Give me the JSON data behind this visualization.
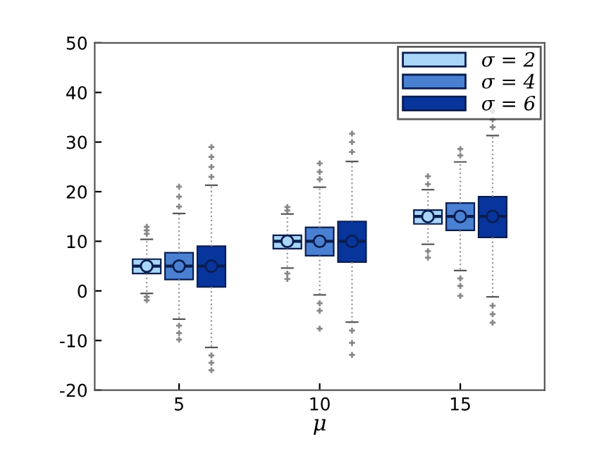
{
  "chart_data": {
    "type": "box",
    "xlabel": "μ",
    "categories": [
      "5",
      "10",
      "15"
    ],
    "ylim": [
      -20,
      50
    ],
    "yticks": [
      -20,
      -10,
      0,
      10,
      20,
      30,
      40,
      50
    ],
    "grid": false,
    "legend": "top right",
    "series": [
      {
        "name": "σ = 2",
        "color": "#a8d5f8",
        "boxes": [
          {
            "low": -0.5,
            "q1": 3.5,
            "median": 5,
            "q3": 6.4,
            "high": 10.4,
            "mean": 5,
            "outliers": [
              11.5,
              12.2,
              12.9,
              -1.2,
              -1.9
            ]
          },
          {
            "low": 4.6,
            "q1": 8.5,
            "median": 10,
            "q3": 11.2,
            "high": 15.5,
            "mean": 10,
            "outliers": [
              16.2,
              16.9,
              3.5,
              2.4
            ]
          },
          {
            "low": 9.4,
            "q1": 13.5,
            "median": 15,
            "q3": 16.3,
            "high": 20.4,
            "mean": 15,
            "outliers": [
              21.5,
              23.1,
              8.0,
              6.7
            ]
          }
        ]
      },
      {
        "name": "σ = 4",
        "color": "#4a80d2",
        "boxes": [
          {
            "low": -5.7,
            "q1": 2.3,
            "median": 5,
            "q3": 7.7,
            "high": 15.6,
            "mean": 5,
            "outliers": [
              17,
              19,
              21,
              -7,
              -8.5,
              -9.8
            ]
          },
          {
            "low": -0.8,
            "q1": 7.1,
            "median": 10,
            "q3": 12.8,
            "high": 20.9,
            "mean": 10,
            "outliers": [
              22.5,
              24,
              25.7,
              -2.5,
              -4,
              -7.6
            ]
          },
          {
            "low": 4.1,
            "q1": 12.2,
            "median": 15,
            "q3": 17.7,
            "high": 26,
            "mean": 15,
            "outliers": [
              27.3,
              28.6,
              2.5,
              1,
              -1
            ]
          }
        ]
      },
      {
        "name": "σ = 6",
        "color": "#08359c",
        "boxes": [
          {
            "low": -11.4,
            "q1": 0.8,
            "median": 5,
            "q3": 9,
            "high": 21.3,
            "mean": 5,
            "outliers": [
              23,
              25,
              27,
              29,
              -13,
              -14.5,
              -16
            ]
          },
          {
            "low": -6.3,
            "q1": 5.8,
            "median": 10,
            "q3": 14,
            "high": 26.1,
            "mean": 10,
            "outliers": [
              28,
              30,
              31.7,
              -8,
              -10.5,
              -12.9
            ]
          },
          {
            "low": -1.2,
            "q1": 10.8,
            "median": 15,
            "q3": 19,
            "high": 31.3,
            "mean": 15,
            "outliers": [
              33,
              34.5,
              36.2,
              -3,
              -4.7,
              -6.4
            ]
          }
        ]
      }
    ]
  }
}
